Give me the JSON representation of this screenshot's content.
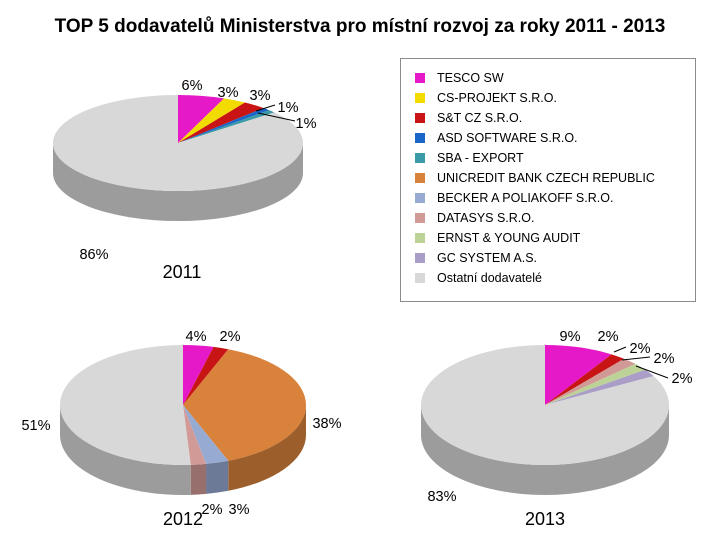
{
  "title": "TOP 5 dodavatelů Ministerstva pro místní rozvoj za roky 2011 - 2013",
  "legend": [
    {
      "label": "TESCO SW",
      "color": "#e619c8"
    },
    {
      "label": "CS-PROJEKT S.R.O.",
      "color": "#f2dc00"
    },
    {
      "label": "S&T CZ S.R.O.",
      "color": "#c81414"
    },
    {
      "label": "ASD SOFTWARE S.R.O.",
      "color": "#1a66c8"
    },
    {
      "label": "SBA - EXPORT",
      "color": "#3a9aa8"
    },
    {
      "label": "UNICREDIT BANK CZECH REPUBLIC",
      "color": "#d8823c"
    },
    {
      "label": "BECKER A POLIAKOFF S.R.O.",
      "color": "#96aad2"
    },
    {
      "label": "DATASYS S.R.O.",
      "color": "#d29a96"
    },
    {
      "label": "ERNST & YOUNG AUDIT",
      "color": "#bcd296"
    },
    {
      "label": "GC SYSTEM A.S.",
      "color": "#aa9ec8"
    },
    {
      "label": "Ostatní dodavatelé",
      "color": "#d8d8d8"
    }
  ],
  "chart_data": [
    {
      "type": "pie",
      "title": "2011",
      "labels": [
        "TESCO SW",
        "CS-PROJEKT S.R.O.",
        "S&T CZ S.R.O.",
        "ASD SOFTWARE S.R.O.",
        "SBA - EXPORT",
        "Ostatní dodavatelé"
      ],
      "values": [
        6,
        3,
        3,
        1,
        1,
        86
      ],
      "data_labels": [
        "6%",
        "3%",
        "3%",
        "1%",
        "1%",
        "86%"
      ]
    },
    {
      "type": "pie",
      "title": "2012",
      "labels": [
        "TESCO SW",
        "S&T CZ S.R.O.",
        "UNICREDIT BANK CZECH REPUBLIC",
        "BECKER A POLIAKOFF S.R.O.",
        "DATASYS S.R.O.",
        "Ostatní dodavatelé"
      ],
      "values": [
        4,
        2,
        38,
        3,
        2,
        51
      ],
      "data_labels": [
        "4%",
        "2%",
        "38%",
        "3%",
        "2%",
        "51%"
      ]
    },
    {
      "type": "pie",
      "title": "2013",
      "labels": [
        "TESCO SW",
        "S&T CZ S.R.O.",
        "DATASYS S.R.O.",
        "ERNST & YOUNG AUDIT",
        "GC SYSTEM A.S.",
        "Ostatní dodavatelé"
      ],
      "values": [
        9,
        2,
        2,
        2,
        2,
        83
      ],
      "data_labels": [
        "9%",
        "2%",
        "2%",
        "2%",
        "2%",
        "83%"
      ]
    }
  ]
}
